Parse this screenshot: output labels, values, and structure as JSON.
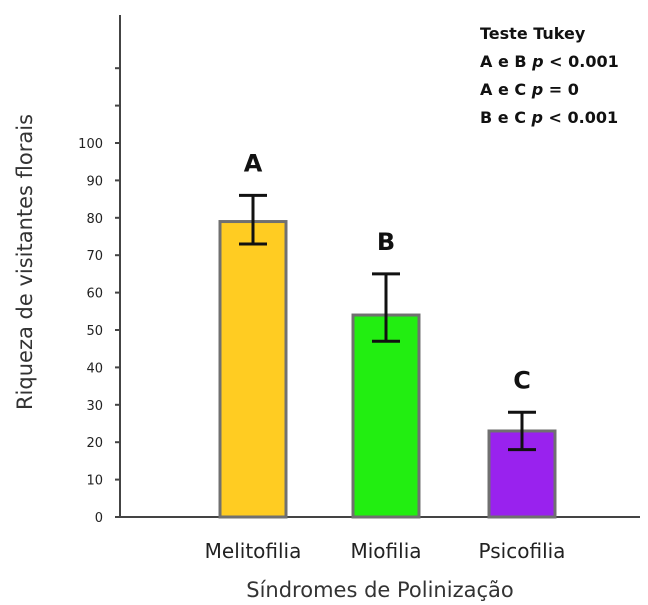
{
  "chart_data": {
    "type": "bar",
    "categories": [
      "Melitofilia",
      "Miofilia",
      "Psicofilia"
    ],
    "values": [
      79,
      54,
      23
    ],
    "error_high": [
      86,
      65,
      28
    ],
    "error_low": [
      73,
      47,
      18
    ],
    "significance_letters": [
      "A",
      "B",
      "C"
    ],
    "colors": [
      "#FFCC22",
      "#22EE11",
      "#9922EE"
    ],
    "bar_edge_color": "#707070",
    "xlabel": "Síndromes de Polinização",
    "ylabel": "Riqueza de visitantes florais",
    "yticks": [
      0,
      10,
      20,
      30,
      40,
      50,
      60,
      70,
      80,
      90,
      100
    ],
    "ylim": [
      0,
      100
    ],
    "grid": false,
    "annotation": {
      "title": "Teste Tukey",
      "lines": [
        {
          "prefix": "A e B ",
          "stat": "p",
          "suffix": " < 0.001"
        },
        {
          "prefix": "A e C ",
          "stat": "p",
          "suffix": " = 0"
        },
        {
          "prefix": "B e C ",
          "stat": "p",
          "suffix": " < 0.001"
        }
      ]
    }
  }
}
